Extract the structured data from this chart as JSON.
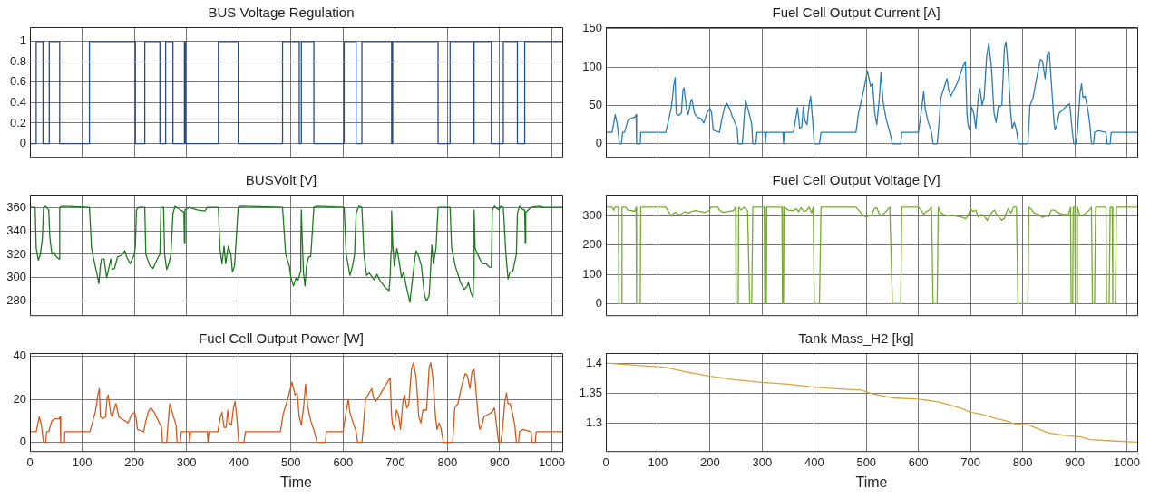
{
  "chart_data": [
    {
      "type": "step",
      "title": "BUS Voltage Regulation",
      "color": "#2b4a8a",
      "grid": true,
      "tick_labels": "y",
      "xlim": [
        0,
        1020
      ],
      "xticks": [
        0,
        100,
        200,
        300,
        400,
        500,
        600,
        700,
        800,
        900,
        1000
      ],
      "ylim": [
        -0.13,
        1.14
      ],
      "yticks": [
        0,
        0.2,
        0.4,
        0.6,
        0.8,
        1
      ],
      "x": [
        0,
        12,
        25,
        37,
        57,
        114,
        202,
        220,
        249,
        260,
        274,
        296,
        298,
        361,
        399,
        484,
        516,
        520,
        544,
        602,
        625,
        636,
        693,
        695,
        782,
        805,
        850,
        851,
        884,
        907,
        934,
        948,
        950,
        1020
      ],
      "values": [
        1,
        0,
        1,
        0,
        1,
        0,
        1,
        0,
        1,
        0,
        1,
        0,
        1,
        0,
        1,
        0,
        1,
        0,
        1,
        0,
        1,
        0,
        1,
        0,
        1,
        0,
        1,
        0,
        1,
        0,
        1,
        0,
        1,
        1
      ]
    },
    {
      "type": "line",
      "title": "Fuel Cell Output Current [A]",
      "color": "#2a7db3",
      "grid": true,
      "tick_labels": "y",
      "xlim": [
        0,
        1020
      ],
      "xticks": [
        0,
        100,
        200,
        300,
        400,
        500,
        600,
        700,
        800,
        900,
        1000
      ],
      "ylim": [
        -17,
        152
      ],
      "yticks": [
        0,
        50,
        100,
        150
      ],
      "x": [
        0,
        12,
        18,
        22,
        26,
        30,
        32,
        36,
        42,
        48,
        56,
        58,
        59,
        66,
        67,
        115,
        125,
        128,
        130,
        133,
        135,
        140,
        145,
        148,
        150,
        155,
        158,
        163,
        165,
        170,
        175,
        182,
        188,
        195,
        200,
        203,
        206,
        218,
        222,
        228,
        232,
        238,
        242,
        252,
        254,
        262,
        265,
        268,
        275,
        280,
        282,
        288,
        290,
        305,
        306,
        308,
        340,
        341,
        343,
        360,
        365,
        368,
        372,
        376,
        379,
        382,
        386,
        390,
        393,
        397,
        400,
        410,
        413,
        480,
        485,
        495,
        502,
        508,
        512,
        516,
        520,
        525,
        528,
        532,
        538,
        545,
        550,
        566,
        568,
        600,
        605,
        610,
        613,
        618,
        625,
        628,
        636,
        638,
        643,
        650,
        655,
        658,
        662,
        668,
        675,
        685,
        690,
        693,
        695,
        698,
        702,
        706,
        710,
        715,
        718,
        722,
        726,
        731,
        735,
        740,
        745,
        749,
        753,
        760,
        765,
        768,
        772,
        777,
        780,
        784,
        788,
        792,
        810,
        814,
        820,
        828,
        834,
        838,
        843,
        847,
        851,
        855,
        860,
        862,
        866,
        870,
        878,
        885,
        890,
        892,
        895,
        898,
        902,
        905,
        910,
        913,
        916,
        920,
        925,
        929,
        932,
        936,
        938,
        945,
        960,
        962,
        968,
        970,
        1020
      ],
      "values": [
        15,
        15,
        38,
        25,
        0,
        0,
        15,
        15,
        30,
        33,
        35,
        38,
        0,
        0,
        15,
        15,
        45,
        60,
        75,
        86,
        40,
        37,
        40,
        70,
        73,
        45,
        38,
        55,
        58,
        40,
        35,
        33,
        27,
        42,
        46,
        40,
        18,
        15,
        30,
        48,
        53,
        45,
        37,
        20,
        0,
        0,
        30,
        57,
        40,
        25,
        0,
        0,
        15,
        15,
        0,
        15,
        15,
        0,
        15,
        15,
        35,
        47,
        20,
        22,
        48,
        30,
        25,
        50,
        62,
        30,
        0,
        0,
        15,
        15,
        40,
        70,
        95,
        75,
        78,
        40,
        25,
        60,
        93,
        55,
        32,
        15,
        0,
        0,
        15,
        15,
        40,
        68,
        45,
        30,
        15,
        0,
        0,
        15,
        60,
        75,
        85,
        70,
        62,
        70,
        80,
        100,
        107,
        40,
        25,
        18,
        48,
        40,
        20,
        62,
        72,
        50,
        60,
        115,
        131,
        100,
        40,
        28,
        48,
        50,
        125,
        133,
        100,
        40,
        20,
        28,
        18,
        0,
        0,
        50,
        60,
        90,
        110,
        108,
        85,
        115,
        120,
        80,
        30,
        18,
        25,
        40,
        45,
        50,
        52,
        40,
        18,
        0,
        0,
        15,
        65,
        78,
        60,
        62,
        45,
        25,
        0,
        0,
        15,
        17,
        15,
        0,
        0,
        15,
        15
      ]
    },
    {
      "type": "line",
      "title": "BUSVolt [V]",
      "color": "#1e7a1e",
      "grid": true,
      "tick_labels": "y",
      "xlim": [
        0,
        1020
      ],
      "xticks": [
        0,
        100,
        200,
        300,
        400,
        500,
        600,
        700,
        800,
        900,
        1000
      ],
      "ylim": [
        268,
        371
      ],
      "yticks": [
        280,
        300,
        320,
        340,
        360
      ],
      "x": [
        0,
        10,
        12,
        16,
        20,
        24,
        26,
        30,
        36,
        38,
        42,
        46,
        50,
        56,
        57,
        62,
        114,
        118,
        125,
        130,
        132,
        135,
        137,
        142,
        147,
        152,
        155,
        158,
        162,
        168,
        175,
        182,
        185,
        192,
        200,
        202,
        204,
        208,
        220,
        222,
        230,
        236,
        240,
        246,
        249,
        251,
        256,
        258,
        262,
        266,
        270,
        274,
        278,
        288,
        295,
        296,
        297,
        305,
        320,
        335,
        340,
        361,
        364,
        368,
        372,
        375,
        380,
        385,
        388,
        392,
        399,
        405,
        484,
        490,
        497,
        500,
        505,
        510,
        514,
        518,
        519,
        520,
        522,
        524,
        527,
        530,
        534,
        538,
        544,
        550,
        602,
        606,
        610,
        613,
        618,
        622,
        625,
        630,
        636,
        640,
        645,
        650,
        660,
        665,
        670,
        680,
        688,
        690,
        692,
        693,
        695,
        698,
        703,
        707,
        712,
        716,
        720,
        725,
        728,
        732,
        738,
        740,
        745,
        750,
        756,
        760,
        765,
        768,
        770,
        773,
        778,
        782,
        805,
        808,
        815,
        825,
        832,
        838,
        840,
        845,
        849,
        850,
        851,
        853,
        858,
        863,
        868,
        874,
        880,
        884,
        886,
        890,
        898,
        902,
        907,
        912,
        916,
        920,
        925,
        932,
        934,
        938,
        945,
        948,
        949,
        950,
        960,
        975,
        985,
        1020
      ],
      "values": [
        360,
        360,
        325,
        315,
        320,
        335,
        360,
        361,
        358,
        335,
        320,
        322,
        318,
        316,
        360,
        361,
        360,
        325,
        310,
        300,
        295,
        310,
        316,
        316,
        300,
        310,
        316,
        307,
        308,
        318,
        319,
        323,
        318,
        312,
        320,
        327,
        358,
        360,
        360,
        320,
        310,
        308,
        312,
        318,
        320,
        360,
        360,
        320,
        307,
        312,
        320,
        355,
        361,
        358,
        356,
        330,
        358,
        360,
        358,
        357,
        360,
        360,
        325,
        312,
        327,
        312,
        327,
        320,
        305,
        310,
        360,
        361,
        360,
        320,
        310,
        300,
        293,
        300,
        298,
        305,
        330,
        358,
        330,
        305,
        293,
        310,
        318,
        318,
        360,
        361,
        360,
        320,
        310,
        302,
        310,
        320,
        355,
        361,
        360,
        320,
        302,
        304,
        298,
        303,
        298,
        292,
        289,
        300,
        323,
        357,
        330,
        310,
        325,
        315,
        300,
        305,
        295,
        285,
        279,
        295,
        318,
        323,
        318,
        310,
        285,
        280,
        285,
        310,
        328,
        312,
        325,
        360,
        360,
        325,
        310,
        296,
        290,
        293,
        296,
        287,
        283,
        300,
        358,
        325,
        320,
        315,
        312,
        312,
        309,
        309,
        358,
        361,
        358,
        361,
        360,
        320,
        299,
        305,
        305,
        320,
        355,
        361,
        358,
        358,
        330,
        356,
        360,
        361,
        360,
        360
      ]
    },
    {
      "type": "line",
      "title": "Fuel Cell Output Voltage [V]",
      "color": "#77ac30",
      "grid": true,
      "tick_labels": "y",
      "xlim": [
        0,
        1020
      ],
      "xticks": [
        0,
        100,
        200,
        300,
        400,
        500,
        600,
        700,
        800,
        900,
        1000
      ],
      "ylim": [
        -40,
        373
      ],
      "yticks": [
        0,
        100,
        200,
        300
      ],
      "x": [
        0,
        12,
        15,
        18,
        24,
        25,
        30,
        31,
        38,
        42,
        50,
        56,
        58,
        59,
        66,
        67,
        115,
        120,
        126,
        130,
        135,
        140,
        146,
        152,
        158,
        165,
        172,
        180,
        190,
        198,
        202,
        215,
        218,
        225,
        235,
        245,
        249,
        250,
        254,
        255,
        260,
        265,
        272,
        276,
        280,
        282,
        300,
        304,
        305,
        306,
        308,
        309,
        338,
        339,
        341,
        342,
        350,
        360,
        365,
        370,
        375,
        380,
        385,
        390,
        395,
        398,
        400,
        410,
        413,
        480,
        485,
        492,
        500,
        505,
        510,
        515,
        520,
        524,
        528,
        532,
        540,
        545,
        550,
        566,
        568,
        600,
        605,
        610,
        615,
        620,
        625,
        628,
        636,
        638,
        642,
        648,
        655,
        665,
        675,
        685,
        690,
        695,
        700,
        705,
        710,
        715,
        720,
        726,
        732,
        737,
        742,
        746,
        750,
        755,
        760,
        765,
        768,
        772,
        778,
        782,
        788,
        791,
        810,
        812,
        818,
        822,
        830,
        838,
        845,
        850,
        855,
        860,
        870,
        880,
        888,
        892,
        893,
        896,
        897,
        900,
        901,
        904,
        905,
        910,
        918,
        928,
        932,
        934,
        938,
        940,
        960,
        961,
        966,
        968,
        972,
        973,
        978,
        980,
        1020
      ],
      "values": [
        330,
        330,
        320,
        330,
        330,
        0,
        0,
        330,
        330,
        320,
        318,
        316,
        330,
        0,
        0,
        330,
        330,
        315,
        300,
        310,
        312,
        302,
        308,
        314,
        310,
        315,
        318,
        315,
        312,
        318,
        330,
        330,
        320,
        312,
        315,
        318,
        330,
        0,
        0,
        330,
        320,
        330,
        318,
        0,
        0,
        330,
        330,
        330,
        0,
        330,
        0,
        330,
        330,
        0,
        0,
        330,
        320,
        318,
        325,
        315,
        328,
        315,
        318,
        330,
        310,
        330,
        0,
        0,
        330,
        330,
        320,
        305,
        295,
        302,
        300,
        325,
        328,
        310,
        300,
        305,
        320,
        330,
        0,
        0,
        330,
        330,
        320,
        305,
        315,
        320,
        330,
        0,
        0,
        330,
        312,
        305,
        300,
        302,
        298,
        295,
        290,
        300,
        325,
        315,
        320,
        295,
        305,
        300,
        285,
        300,
        315,
        320,
        305,
        295,
        285,
        292,
        308,
        325,
        310,
        330,
        330,
        0,
        0,
        330,
        320,
        310,
        305,
        295,
        300,
        298,
        320,
        320,
        310,
        305,
        305,
        330,
        0,
        0,
        330,
        330,
        0,
        0,
        330,
        300,
        305,
        320,
        330,
        0,
        0,
        330,
        330,
        0,
        0,
        330,
        330,
        0,
        0,
        330,
        330
      ]
    },
    {
      "type": "line",
      "title": "Fuel Cell Output Power [W]",
      "xlabel": "Time",
      "color": "#d35a1e",
      "grid": true,
      "xlim": [
        0,
        1020
      ],
      "xticks": [
        0,
        100,
        200,
        300,
        400,
        500,
        600,
        700,
        800,
        900,
        1000
      ],
      "ylim": [
        -4,
        41.5
      ],
      "yticks": [
        0,
        20,
        40
      ],
      "x": [
        0,
        12,
        18,
        22,
        26,
        30,
        32,
        36,
        42,
        48,
        56,
        58,
        59,
        66,
        67,
        115,
        125,
        128,
        130,
        133,
        135,
        140,
        145,
        148,
        150,
        155,
        158,
        163,
        165,
        170,
        175,
        182,
        188,
        195,
        200,
        203,
        206,
        218,
        222,
        228,
        232,
        238,
        242,
        252,
        254,
        262,
        265,
        268,
        275,
        280,
        282,
        288,
        290,
        305,
        306,
        308,
        340,
        341,
        343,
        360,
        365,
        368,
        372,
        376,
        379,
        382,
        386,
        390,
        393,
        397,
        400,
        410,
        413,
        480,
        485,
        495,
        502,
        508,
        512,
        516,
        520,
        525,
        528,
        532,
        538,
        545,
        550,
        566,
        568,
        600,
        605,
        610,
        613,
        618,
        625,
        628,
        636,
        638,
        643,
        650,
        655,
        658,
        662,
        668,
        675,
        685,
        690,
        693,
        695,
        698,
        702,
        706,
        710,
        715,
        718,
        722,
        726,
        731,
        735,
        740,
        745,
        749,
        753,
        760,
        765,
        768,
        772,
        777,
        780,
        784,
        788,
        792,
        810,
        814,
        820,
        828,
        834,
        838,
        843,
        847,
        851,
        855,
        860,
        862,
        866,
        870,
        878,
        885,
        890,
        892,
        895,
        898,
        902,
        905,
        910,
        913,
        916,
        920,
        925,
        929,
        932,
        936,
        938,
        945,
        960,
        962,
        968,
        970,
        1020
      ],
      "values": [
        5,
        5,
        12,
        8,
        0,
        0,
        5,
        5,
        10,
        11,
        11,
        12,
        0,
        0,
        5,
        5,
        14,
        18,
        22,
        25,
        12,
        11,
        12,
        21,
        22,
        13,
        12,
        17,
        18,
        12,
        11,
        10,
        9,
        13,
        14,
        12,
        6,
        5,
        10,
        15,
        16,
        14,
        12,
        7,
        0,
        0,
        10,
        18,
        12,
        8,
        0,
        0,
        5,
        5,
        0,
        5,
        5,
        0,
        5,
        5,
        12,
        14,
        7,
        7,
        15,
        9,
        8,
        16,
        19,
        10,
        0,
        0,
        5,
        5,
        13,
        21,
        28,
        22,
        23,
        12,
        8,
        18,
        27,
        17,
        10,
        5,
        0,
        0,
        5,
        5,
        13,
        20,
        14,
        10,
        5,
        0,
        0,
        5,
        20,
        23,
        25,
        21,
        19,
        21,
        24,
        28,
        30,
        12,
        8,
        6,
        15,
        13,
        6,
        20,
        22,
        16,
        18,
        34,
        37,
        30,
        12,
        9,
        15,
        15,
        35,
        37,
        30,
        12,
        6,
        9,
        6,
        0,
        0,
        16,
        18,
        27,
        32,
        31,
        25,
        33,
        34,
        23,
        9,
        6,
        8,
        12,
        13,
        14,
        16,
        12,
        6,
        0,
        0,
        5,
        19,
        23,
        18,
        18,
        13,
        8,
        0,
        0,
        5,
        6,
        5,
        0,
        0,
        5,
        5
      ]
    },
    {
      "type": "line",
      "title": "Tank Mass_H2 [kg]",
      "xlabel": "Time",
      "color": "#d6a640",
      "grid": true,
      "xlim": [
        0,
        1020
      ],
      "xticks": [
        0,
        100,
        200,
        300,
        400,
        500,
        600,
        700,
        800,
        900,
        1000
      ],
      "ylim": [
        1.253,
        1.417
      ],
      "yticks": [
        1.3,
        1.35,
        1.4
      ],
      "x": [
        0,
        50,
        100,
        115,
        150,
        200,
        250,
        300,
        350,
        400,
        450,
        490,
        510,
        550,
        600,
        640,
        680,
        700,
        720,
        750,
        770,
        785,
        810,
        850,
        890,
        910,
        930,
        970,
        1020
      ],
      "values": [
        1.4,
        1.397,
        1.394,
        1.393,
        1.386,
        1.378,
        1.372,
        1.368,
        1.365,
        1.36,
        1.357,
        1.355,
        1.349,
        1.342,
        1.34,
        1.335,
        1.325,
        1.318,
        1.315,
        1.307,
        1.303,
        1.298,
        1.297,
        1.283,
        1.278,
        1.277,
        1.272,
        1.27,
        1.268
      ]
    }
  ]
}
